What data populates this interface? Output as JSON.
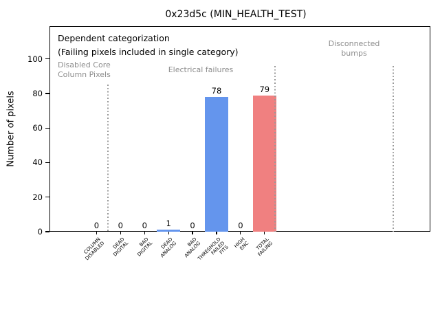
{
  "chart_data": {
    "type": "bar",
    "title": "0x23d5c (MIN_HEALTH_TEST)",
    "ylabel": "Number of pixels",
    "xlabel": "",
    "categories": [
      "COLUMN\nDISABLED",
      "DEAD\nDIGITAL",
      "BAD\nDIGITAL",
      "DEAD\nANALOG",
      "BAD\nANALOG",
      "THRESHOLD\nFAILED\nFITS",
      "HIGH\nENC",
      "TOTAL\nFAILING"
    ],
    "values": [
      0,
      0,
      0,
      1,
      0,
      78,
      0,
      79
    ],
    "value_labels": [
      "0",
      "0",
      "0",
      "1",
      "0",
      "78",
      "0",
      "79"
    ],
    "bar_colors": [
      "#6495ED",
      "#6495ED",
      "#6495ED",
      "#6495ED",
      "#6495ED",
      "#6495ED",
      "#6495ED",
      "#F08080"
    ],
    "yticks": [
      0,
      20,
      40,
      60,
      80,
      100
    ],
    "ylim": [
      0,
      119
    ],
    "xlim": [
      -1.96,
      13.91
    ],
    "grid": false,
    "legend": null,
    "colors": {
      "default_bar": "#6495ED",
      "total_bar": "#F08080",
      "region_text": "#8c8c8c",
      "separator": "#999999",
      "axis": "#000000"
    },
    "separators": [
      {
        "x_index": 0.47,
        "ymax": 85
      },
      {
        "x_index": 7.44,
        "ymax": 96
      },
      {
        "x_index": 12.36,
        "ymax": 96
      }
    ],
    "annotations": {
      "line1": "Dependent categorization",
      "line2": "(Failing pixels included in single category)",
      "regions": [
        {
          "text": "Disabled Core\nColumn Pixels"
        },
        {
          "text": "Electrical failures"
        },
        {
          "text": "Disconnected\nbumps"
        }
      ]
    }
  }
}
